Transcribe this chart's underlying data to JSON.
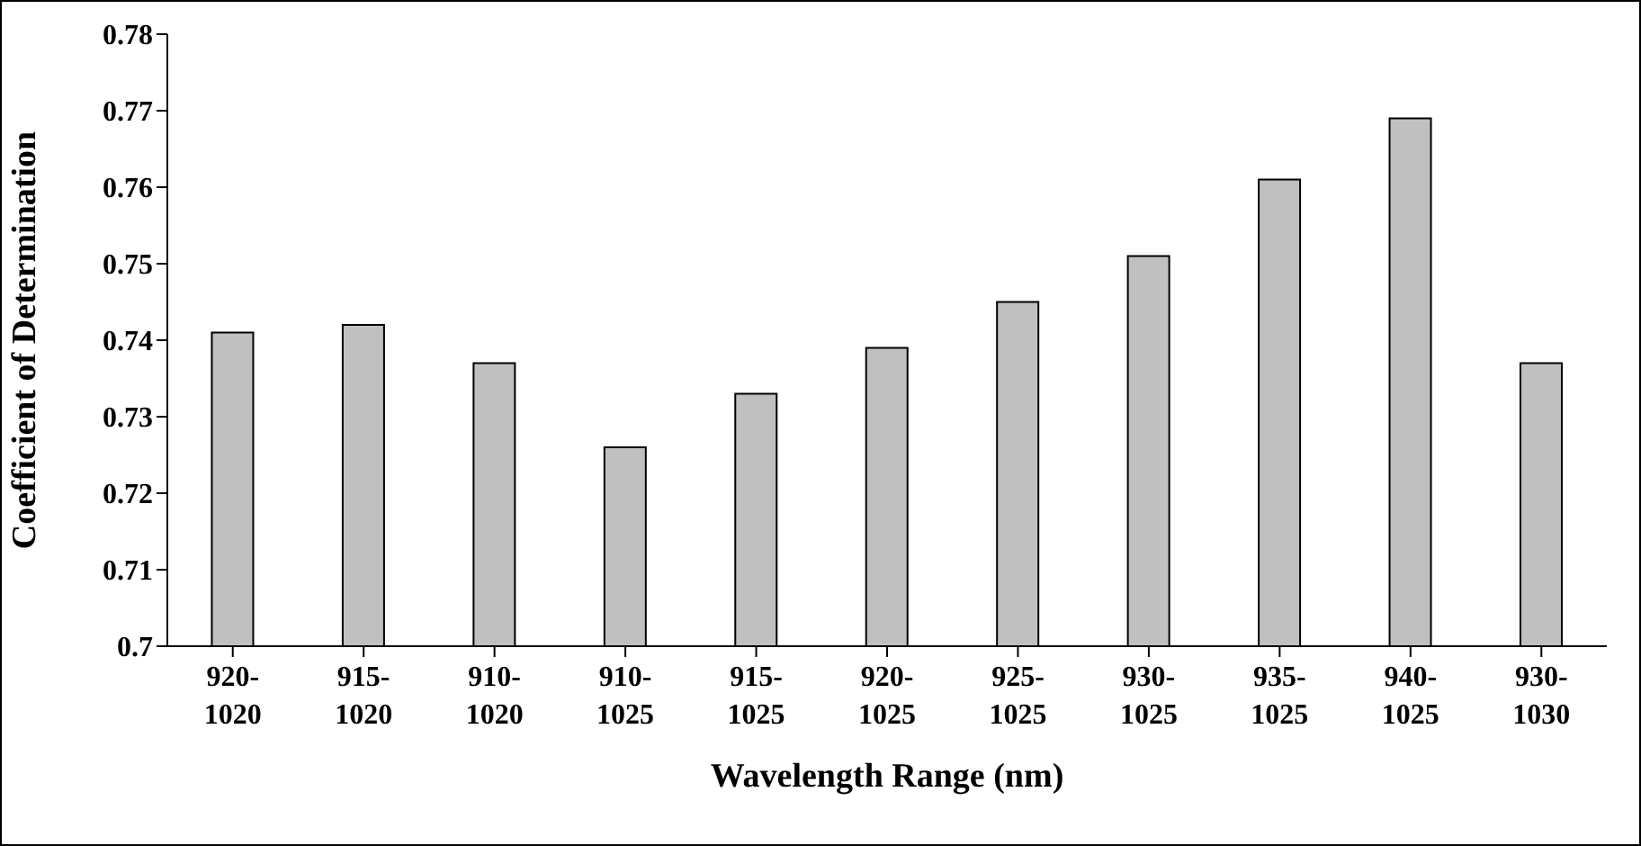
{
  "chart_data": {
    "type": "bar",
    "xlabel": "Wavelength Range (nm)",
    "ylabel": "Coefficient of Determination",
    "categories": [
      "920-1020",
      "915-1020",
      "910-1020",
      "910-1025",
      "915-1025",
      "920-1025",
      "925-1025",
      "930-1025",
      "935-1025",
      "940-1025",
      "930-1030"
    ],
    "values": [
      0.741,
      0.742,
      0.737,
      0.726,
      0.733,
      0.739,
      0.745,
      0.751,
      0.761,
      0.769,
      0.737
    ],
    "color": "#c0c0c0",
    "ylim": [
      0.7,
      0.78
    ],
    "yticks": [
      0.7,
      0.71,
      0.72,
      0.73,
      0.74,
      0.75,
      0.76,
      0.77,
      0.78
    ],
    "grid": false,
    "legend": false
  }
}
